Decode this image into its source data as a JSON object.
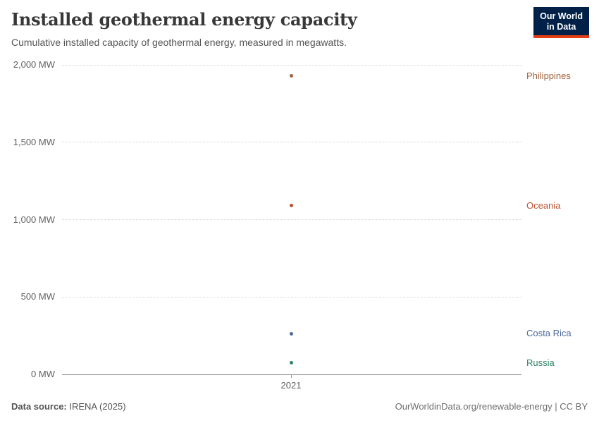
{
  "header": {
    "title": "Installed geothermal energy capacity",
    "subtitle": "Cumulative installed capacity of geothermal energy, measured in megawatts.",
    "logo": {
      "line1": "Our World",
      "line2": "in Data",
      "bg_color": "#002147",
      "accent_color": "#E63E13"
    }
  },
  "chart_data": {
    "type": "scatter",
    "x": [
      2021
    ],
    "xtick_labels": [
      "2021"
    ],
    "ylim": [
      0,
      2000
    ],
    "yticks": [
      0,
      500,
      1000,
      1500,
      2000
    ],
    "ytick_labels": [
      "0 MW",
      "500 MW",
      "1,000 MW",
      "1,500 MW",
      "2,000 MW"
    ],
    "unit": "MW",
    "grid": true,
    "legend_position": "right-inline-labels",
    "series": [
      {
        "name": "Philippines",
        "values": [
          1928
        ],
        "color": "#A2633C"
      },
      {
        "name": "Oceania",
        "values": [
          1090
        ],
        "color": "#BE512E"
      },
      {
        "name": "Costa Rica",
        "values": [
          262
        ],
        "color": "#4C6A9C"
      },
      {
        "name": "Russia",
        "values": [
          74
        ],
        "color": "#2C8465"
      }
    ]
  },
  "footer": {
    "source_label": "Data source:",
    "source_value": "IRENA (2025)",
    "credit": "OurWorldinData.org/renewable-energy | CC BY"
  }
}
